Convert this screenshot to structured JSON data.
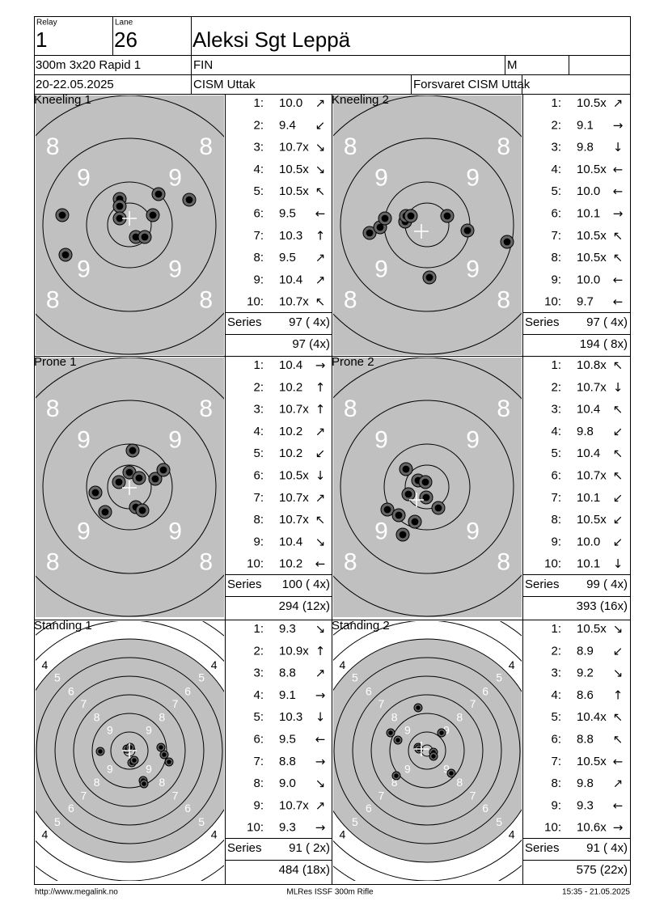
{
  "header": {
    "relay_label": "Relay",
    "relay": "1",
    "lane_label": "Lane",
    "lane": "26",
    "name": "Aleksi Sgt Leppä",
    "event": "300m 3x20 Rapid 1",
    "nation": "FIN",
    "gender": "M",
    "date": "20-22.05.2025",
    "competition": "CISM Uttak",
    "club": "Forsvaret CISM Uttak"
  },
  "panels": [
    {
      "title": "Kneeling 1",
      "ring_labels": [
        "8",
        "9"
      ],
      "shots": [
        {
          "n": "1:",
          "value": "10.0",
          "dir": "↗"
        },
        {
          "n": "2:",
          "value": "9.4",
          "dir": "↙"
        },
        {
          "n": "3:",
          "value": "10.7x",
          "dir": "↘"
        },
        {
          "n": "4:",
          "value": "10.5x",
          "dir": "↘"
        },
        {
          "n": "5:",
          "value": "10.5x",
          "dir": "↖"
        },
        {
          "n": "6:",
          "value": "9.5",
          "dir": "←"
        },
        {
          "n": "7:",
          "value": "10.3",
          "dir": "↑"
        },
        {
          "n": "8:",
          "value": "9.5",
          "dir": "↗"
        },
        {
          "n": "9:",
          "value": "10.4",
          "dir": "↗"
        },
        {
          "n": "10:",
          "value": "10.7x",
          "dir": "↖"
        }
      ],
      "series_label": "Series",
      "series": "97 ( 4x)",
      "total": "97 (4x)"
    },
    {
      "title": "Kneeling 2",
      "ring_labels": [
        "8",
        "9"
      ],
      "shots": [
        {
          "n": "1:",
          "value": "10.5x",
          "dir": "↗"
        },
        {
          "n": "2:",
          "value": "9.1",
          "dir": "→"
        },
        {
          "n": "3:",
          "value": "9.8",
          "dir": "↓"
        },
        {
          "n": "4:",
          "value": "10.5x",
          "dir": "←"
        },
        {
          "n": "5:",
          "value": "10.0",
          "dir": "←"
        },
        {
          "n": "6:",
          "value": "10.1",
          "dir": "→"
        },
        {
          "n": "7:",
          "value": "10.5x",
          "dir": "↖"
        },
        {
          "n": "8:",
          "value": "10.5x",
          "dir": "↖"
        },
        {
          "n": "9:",
          "value": "10.0",
          "dir": "←"
        },
        {
          "n": "10:",
          "value": "9.7",
          "dir": "←"
        }
      ],
      "series_label": "Series",
      "series": "97 ( 4x)",
      "total": "194 ( 8x)"
    },
    {
      "title": "Prone 1",
      "ring_labels": [
        "8",
        "9"
      ],
      "shots": [
        {
          "n": "1:",
          "value": "10.4",
          "dir": "→"
        },
        {
          "n": "2:",
          "value": "10.2",
          "dir": "↑"
        },
        {
          "n": "3:",
          "value": "10.7x",
          "dir": "↑"
        },
        {
          "n": "4:",
          "value": "10.2",
          "dir": "↗"
        },
        {
          "n": "5:",
          "value": "10.2",
          "dir": "↙"
        },
        {
          "n": "6:",
          "value": "10.5x",
          "dir": "↓"
        },
        {
          "n": "7:",
          "value": "10.7x",
          "dir": "↗"
        },
        {
          "n": "8:",
          "value": "10.7x",
          "dir": "↖"
        },
        {
          "n": "9:",
          "value": "10.4",
          "dir": "↘"
        },
        {
          "n": "10:",
          "value": "10.2",
          "dir": "←"
        }
      ],
      "series_label": "Series",
      "series": "100 ( 4x)",
      "total": "294 (12x)"
    },
    {
      "title": "Prone 2",
      "ring_labels": [
        "8",
        "9"
      ],
      "shots": [
        {
          "n": "1:",
          "value": "10.8x",
          "dir": "↖"
        },
        {
          "n": "2:",
          "value": "10.7x",
          "dir": "↓"
        },
        {
          "n": "3:",
          "value": "10.4",
          "dir": "↖"
        },
        {
          "n": "4:",
          "value": "9.8",
          "dir": "↙"
        },
        {
          "n": "5:",
          "value": "10.4",
          "dir": "↖"
        },
        {
          "n": "6:",
          "value": "10.7x",
          "dir": "↖"
        },
        {
          "n": "7:",
          "value": "10.1",
          "dir": "↙"
        },
        {
          "n": "8:",
          "value": "10.5x",
          "dir": "↙"
        },
        {
          "n": "9:",
          "value": "10.0",
          "dir": "↙"
        },
        {
          "n": "10:",
          "value": "10.1",
          "dir": "↓"
        }
      ],
      "series_label": "Series",
      "series": "99 ( 4x)",
      "total": "393 (16x)"
    },
    {
      "title": "Standing 1",
      "ring_labels": [
        "4",
        "5",
        "6",
        "7",
        "8",
        "9"
      ],
      "shots": [
        {
          "n": "1:",
          "value": "9.3",
          "dir": "↘"
        },
        {
          "n": "2:",
          "value": "10.9x",
          "dir": "↑"
        },
        {
          "n": "3:",
          "value": "8.8",
          "dir": "↗"
        },
        {
          "n": "4:",
          "value": "9.1",
          "dir": "→"
        },
        {
          "n": "5:",
          "value": "10.3",
          "dir": "↓"
        },
        {
          "n": "6:",
          "value": "9.5",
          "dir": "←"
        },
        {
          "n": "7:",
          "value": "8.8",
          "dir": "→"
        },
        {
          "n": "8:",
          "value": "9.0",
          "dir": "↘"
        },
        {
          "n": "9:",
          "value": "10.7x",
          "dir": "↗"
        },
        {
          "n": "10:",
          "value": "9.3",
          "dir": "→"
        }
      ],
      "series_label": "Series",
      "series": "91 ( 2x)",
      "total": "484 (18x)"
    },
    {
      "title": "Standing 2",
      "ring_labels": [
        "4",
        "5",
        "6",
        "7",
        "8",
        "9"
      ],
      "shots": [
        {
          "n": "1:",
          "value": "10.5x",
          "dir": "↘"
        },
        {
          "n": "2:",
          "value": "8.9",
          "dir": "↙"
        },
        {
          "n": "3:",
          "value": "9.2",
          "dir": "↘"
        },
        {
          "n": "4:",
          "value": "8.6",
          "dir": "↑"
        },
        {
          "n": "5:",
          "value": "10.4x",
          "dir": "↖"
        },
        {
          "n": "6:",
          "value": "8.8",
          "dir": "↖"
        },
        {
          "n": "7:",
          "value": "10.5x",
          "dir": "←"
        },
        {
          "n": "8:",
          "value": "9.8",
          "dir": "↗"
        },
        {
          "n": "9:",
          "value": "9.3",
          "dir": "←"
        },
        {
          "n": "10:",
          "value": "10.6x",
          "dir": "→"
        }
      ],
      "series_label": "Series",
      "series": "91 ( 4x)",
      "total": "575 (22x)"
    }
  ],
  "footer": {
    "url": "http://www.megalink.no",
    "software": "MLRes ISSF 300m Rifle",
    "timestamp": "15:35 - 21.05.2025"
  }
}
